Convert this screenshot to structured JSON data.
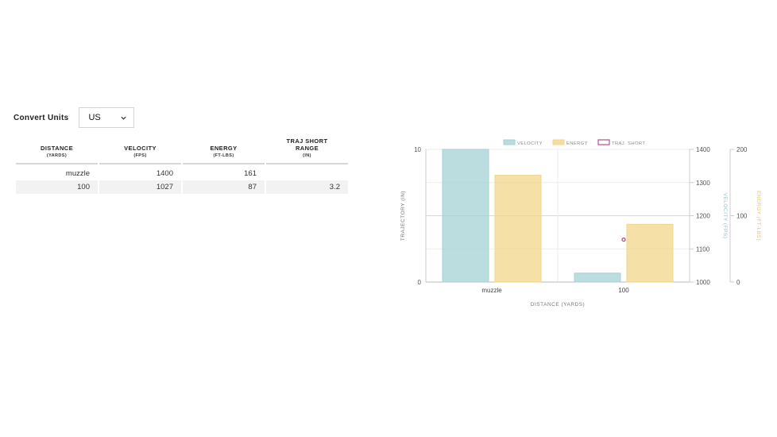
{
  "units": {
    "label": "Convert Units",
    "selected": "US",
    "icon": "chevron-down-icon"
  },
  "table": {
    "headers": [
      {
        "title": "DISTANCE",
        "sub": "(YARDS)"
      },
      {
        "title": "VELOCITY",
        "sub": "(FPS)"
      },
      {
        "title": "ENERGY",
        "sub": "(FT-LBS)"
      },
      {
        "title": "TRAJ SHORT RANGE",
        "sub": "(IN)"
      }
    ],
    "rows": [
      [
        "muzzle",
        "1400",
        "161",
        ""
      ],
      [
        "100",
        "1027",
        "87",
        "3.2"
      ]
    ]
  },
  "chart_data": {
    "type": "bar",
    "categories": [
      "muzzle",
      "100"
    ],
    "xlabel": "DISTANCE (YARDS)",
    "legend_position": "top",
    "legend": [
      "VELOCITY",
      "ENERGY",
      "TRAJ. SHORT"
    ],
    "series": [
      {
        "name": "VELOCITY",
        "type": "bar",
        "axis": "velocity",
        "values": [
          1400,
          1027
        ],
        "color": "#a6d2d4"
      },
      {
        "name": "ENERGY",
        "type": "bar",
        "axis": "energy",
        "values": [
          161,
          87
        ],
        "color": "#f2d68a"
      },
      {
        "name": "TRAJ. SHORT",
        "type": "scatter",
        "axis": "trajectory",
        "values": [
          null,
          3.2
        ],
        "color": "#b0508f"
      }
    ],
    "axes": {
      "trajectory": {
        "label": "TRAJECTORY (IN)",
        "range": [
          0,
          10
        ],
        "ticks": [
          "0",
          "10"
        ],
        "position": "left"
      },
      "velocity": {
        "label": "VELOCITY (FPS)",
        "range": [
          1000,
          1400
        ],
        "ticks": [
          "1000",
          "1100",
          "1200",
          "1300",
          "1400"
        ],
        "position": "right",
        "color": "#8cc6c9"
      },
      "energy": {
        "label": "ENERGY (FT-LBS)",
        "range": [
          0,
          200
        ],
        "ticks": [
          "0",
          "100",
          "200"
        ],
        "position": "right",
        "color": "#f0c25a"
      }
    },
    "grid": true
  }
}
